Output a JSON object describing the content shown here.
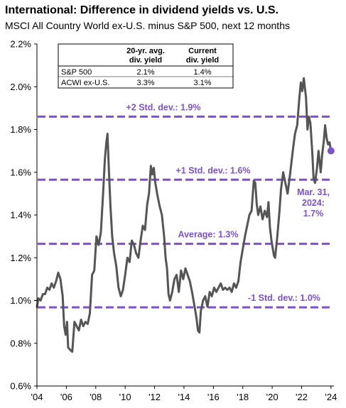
{
  "title": "International: Difference in dividend yields vs. U.S.",
  "subtitle": "MSCI All Country World ex-U.S. minus S&P 500, next 12 months",
  "colors": {
    "line": "#555555",
    "accent": "#7b52c9",
    "axis": "#000000"
  },
  "table": {
    "headers": [
      "",
      "20-yr. avg. div. yield",
      "Current div. yield"
    ],
    "header_lines": [
      [
        "20-yr. avg.",
        "div. yield"
      ],
      [
        "Current",
        "div. yield"
      ]
    ],
    "rows": [
      [
        "S&P 500",
        "2.1%",
        "1.4%"
      ],
      [
        "ACWI ex-U.S.",
        "3.3%",
        "3.1%"
      ]
    ]
  },
  "chart_data": {
    "type": "line",
    "ylim": [
      0.6,
      2.2
    ],
    "xlim": [
      2004,
      2024.2
    ],
    "yticks": [
      0.6,
      0.8,
      1.0,
      1.2,
      1.4,
      1.6,
      1.8,
      2.0,
      2.2
    ],
    "ytick_labels": [
      "0.6%",
      "0.8%",
      "1.0%",
      "1.2%",
      "1.4%",
      "1.6%",
      "1.8%",
      "2.0%",
      "2.2%"
    ],
    "xticks": [
      2004,
      2006,
      2008,
      2010,
      2012,
      2014,
      2016,
      2018,
      2020,
      2022,
      2024
    ],
    "xtick_labels": [
      "'04",
      "'06",
      "'08",
      "'10",
      "'12",
      "'14",
      "'16",
      "'18",
      "'20",
      "'22",
      "'24"
    ],
    "reference_lines": [
      {
        "label": "+2 Std. dev.: 1.9%",
        "value": 1.86
      },
      {
        "label": "+1 Std. dev.: 1.6%",
        "value": 1.565
      },
      {
        "label": "Average: 1.3%",
        "value": 1.265
      },
      {
        "label": "-1 Std. dev.: 1.0%",
        "value": 0.968
      }
    ],
    "annotation": {
      "lines": [
        "Mar. 31,",
        "2024:",
        "1.7%"
      ],
      "x": 2024.0,
      "y": 1.7
    },
    "series": [
      {
        "points": [
          [
            2004.0,
            0.97
          ],
          [
            2004.1,
            1.01
          ],
          [
            2004.25,
            1.0
          ],
          [
            2004.4,
            1.03
          ],
          [
            2004.55,
            1.03
          ],
          [
            2004.7,
            1.06
          ],
          [
            2004.85,
            1.05
          ],
          [
            2005.0,
            1.08
          ],
          [
            2005.15,
            1.06
          ],
          [
            2005.3,
            1.09
          ],
          [
            2005.45,
            1.13
          ],
          [
            2005.6,
            1.1
          ],
          [
            2005.75,
            1.02
          ],
          [
            2005.85,
            0.88
          ],
          [
            2005.95,
            0.84
          ],
          [
            2006.05,
            0.9
          ],
          [
            2006.12,
            0.78
          ],
          [
            2006.25,
            0.77
          ],
          [
            2006.4,
            0.76
          ],
          [
            2006.55,
            0.9
          ],
          [
            2006.7,
            0.88
          ],
          [
            2006.85,
            0.86
          ],
          [
            2007.0,
            0.91
          ],
          [
            2007.15,
            0.88
          ],
          [
            2007.3,
            0.9
          ],
          [
            2007.45,
            0.89
          ],
          [
            2007.6,
            0.94
          ],
          [
            2007.75,
            1.12
          ],
          [
            2007.9,
            1.14
          ],
          [
            2008.05,
            1.3
          ],
          [
            2008.2,
            1.26
          ],
          [
            2008.35,
            1.32
          ],
          [
            2008.5,
            1.5
          ],
          [
            2008.62,
            1.66
          ],
          [
            2008.72,
            1.74
          ],
          [
            2008.8,
            1.78
          ],
          [
            2008.9,
            1.6
          ],
          [
            2009.0,
            1.44
          ],
          [
            2009.12,
            1.3
          ],
          [
            2009.25,
            1.22
          ],
          [
            2009.4,
            1.16
          ],
          [
            2009.55,
            1.06
          ],
          [
            2009.7,
            1.02
          ],
          [
            2009.85,
            1.05
          ],
          [
            2010.0,
            1.12
          ],
          [
            2010.15,
            1.2
          ],
          [
            2010.3,
            1.18
          ],
          [
            2010.45,
            1.28
          ],
          [
            2010.6,
            1.26
          ],
          [
            2010.75,
            1.22
          ],
          [
            2010.9,
            1.2
          ],
          [
            2011.05,
            1.28
          ],
          [
            2011.2,
            1.35
          ],
          [
            2011.35,
            1.33
          ],
          [
            2011.5,
            1.45
          ],
          [
            2011.62,
            1.5
          ],
          [
            2011.75,
            1.63
          ],
          [
            2011.85,
            1.59
          ],
          [
            2011.95,
            1.62
          ],
          [
            2012.05,
            1.55
          ],
          [
            2012.2,
            1.49
          ],
          [
            2012.35,
            1.44
          ],
          [
            2012.5,
            1.4
          ],
          [
            2012.65,
            1.3
          ],
          [
            2012.75,
            1.2
          ],
          [
            2012.85,
            1.15
          ],
          [
            2012.95,
            1.03
          ],
          [
            2013.05,
            1.0
          ],
          [
            2013.2,
            1.04
          ],
          [
            2013.35,
            1.1
          ],
          [
            2013.5,
            1.12
          ],
          [
            2013.65,
            1.04
          ],
          [
            2013.8,
            1.14
          ],
          [
            2013.95,
            1.1
          ],
          [
            2014.1,
            1.15
          ],
          [
            2014.25,
            1.12
          ],
          [
            2014.4,
            1.09
          ],
          [
            2014.55,
            1.04
          ],
          [
            2014.7,
            0.98
          ],
          [
            2014.85,
            0.92
          ],
          [
            2014.95,
            0.86
          ],
          [
            2015.05,
            0.85
          ],
          [
            2015.15,
            0.95
          ],
          [
            2015.3,
            1.0
          ],
          [
            2015.45,
            1.02
          ],
          [
            2015.6,
            0.97
          ],
          [
            2015.75,
            1.04
          ],
          [
            2015.9,
            1.02
          ],
          [
            2016.05,
            1.06
          ],
          [
            2016.2,
            1.04
          ],
          [
            2016.35,
            1.06
          ],
          [
            2016.5,
            1.08
          ],
          [
            2016.65,
            1.05
          ],
          [
            2016.8,
            1.06
          ],
          [
            2016.95,
            1.05
          ],
          [
            2017.1,
            1.06
          ],
          [
            2017.25,
            1.04
          ],
          [
            2017.4,
            1.08
          ],
          [
            2017.55,
            1.06
          ],
          [
            2017.7,
            1.09
          ],
          [
            2017.85,
            1.18
          ],
          [
            2018.0,
            1.24
          ],
          [
            2018.15,
            1.3
          ],
          [
            2018.3,
            1.35
          ],
          [
            2018.45,
            1.4
          ],
          [
            2018.6,
            1.42
          ],
          [
            2018.75,
            1.56
          ],
          [
            2018.85,
            1.55
          ],
          [
            2018.95,
            1.45
          ],
          [
            2019.05,
            1.4
          ],
          [
            2019.2,
            1.44
          ],
          [
            2019.35,
            1.38
          ],
          [
            2019.5,
            1.42
          ],
          [
            2019.65,
            1.39
          ],
          [
            2019.75,
            1.46
          ],
          [
            2019.85,
            1.34
          ],
          [
            2019.95,
            1.28
          ],
          [
            2020.05,
            1.24
          ],
          [
            2020.12,
            1.21
          ],
          [
            2020.2,
            1.2
          ],
          [
            2020.35,
            1.3
          ],
          [
            2020.5,
            1.42
          ],
          [
            2020.6,
            1.52
          ],
          [
            2020.75,
            1.6
          ],
          [
            2020.9,
            1.55
          ],
          [
            2021.05,
            1.5
          ],
          [
            2021.2,
            1.58
          ],
          [
            2021.4,
            1.7
          ],
          [
            2021.55,
            1.78
          ],
          [
            2021.7,
            1.82
          ],
          [
            2021.85,
            1.95
          ],
          [
            2021.95,
            2.02
          ],
          [
            2022.05,
            1.98
          ],
          [
            2022.15,
            2.04
          ],
          [
            2022.3,
            1.95
          ],
          [
            2022.4,
            1.8
          ],
          [
            2022.5,
            1.86
          ],
          [
            2022.6,
            1.83
          ],
          [
            2022.72,
            1.7
          ],
          [
            2022.82,
            1.57
          ],
          [
            2022.92,
            1.55
          ],
          [
            2023.05,
            1.62
          ],
          [
            2023.15,
            1.7
          ],
          [
            2023.3,
            1.6
          ],
          [
            2023.4,
            1.68
          ],
          [
            2023.52,
            1.75
          ],
          [
            2023.6,
            1.82
          ],
          [
            2023.7,
            1.76
          ],
          [
            2023.8,
            1.73
          ],
          [
            2023.9,
            1.74
          ],
          [
            2024.0,
            1.7
          ]
        ]
      }
    ]
  }
}
